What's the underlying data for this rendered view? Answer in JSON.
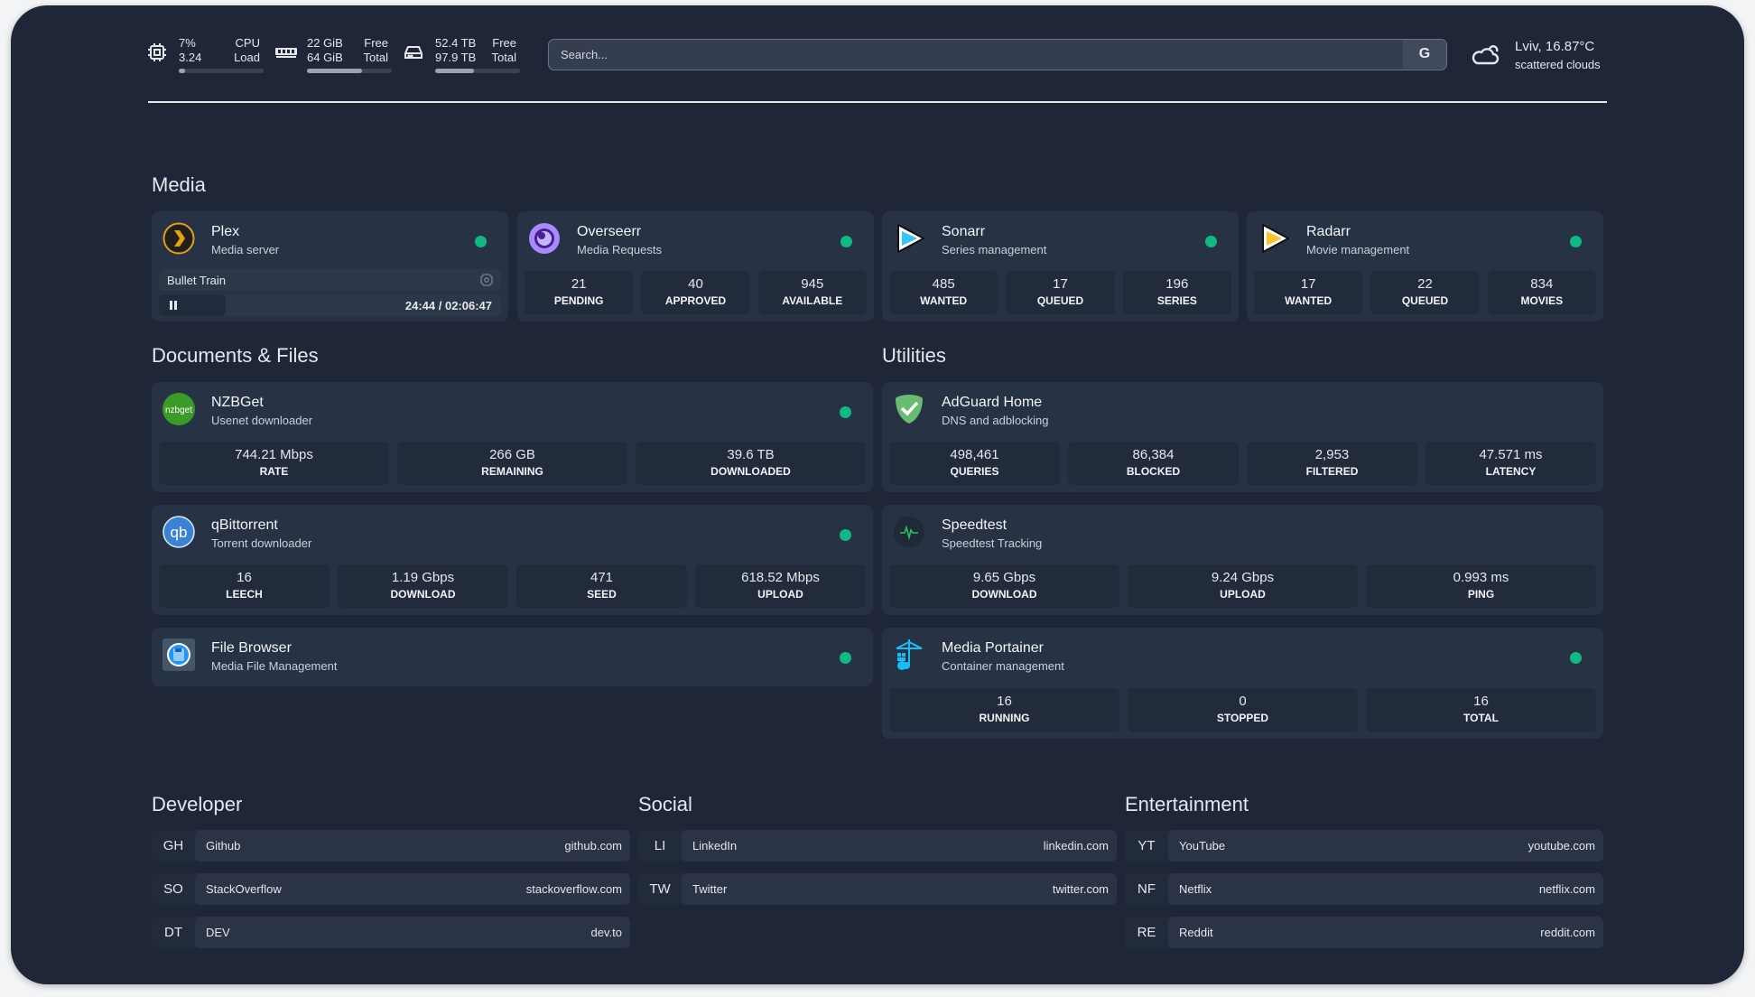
{
  "header": {
    "cpu": {
      "icon": "cpu-icon",
      "value1": "7%",
      "value2": "3.24",
      "label1": "CPU",
      "label2": "Load",
      "percent": 7
    },
    "memory": {
      "icon": "memory-icon",
      "value1": "22 GiB",
      "value2": "64 GiB",
      "label1": "Free",
      "label2": "Total",
      "percent": 65
    },
    "disk": {
      "icon": "hard-drive-icon",
      "value1": "52.4 TB",
      "value2": "97.9 TB",
      "label1": "Free",
      "label2": "Total",
      "percent": 46
    },
    "search": {
      "placeholder": "Search...",
      "button": "G"
    },
    "weather": {
      "icon": "cloud-icon",
      "location": "Lviv, 16.87°C",
      "description": "scattered clouds"
    }
  },
  "colors": {
    "background": "#1e2638",
    "card": "#283245",
    "status_online": "#10b981"
  },
  "sections": {
    "media": "Media",
    "documents": "Documents & Files",
    "utilities": "Utilities",
    "developer": "Developer",
    "social": "Social",
    "entertainment": "Entertainment"
  },
  "media": [
    {
      "name": "Plex",
      "desc": "Media server",
      "icon": "plex-icon",
      "status": "online",
      "now_playing": {
        "title": "Bullet Train",
        "time": "24:44 / 02:06:47",
        "progress_percent": 19.5
      }
    },
    {
      "name": "Overseerr",
      "desc": "Media Requests",
      "icon": "overseerr-icon",
      "status": "online",
      "stats": [
        {
          "v": "21",
          "l": "PENDING"
        },
        {
          "v": "40",
          "l": "APPROVED"
        },
        {
          "v": "945",
          "l": "AVAILABLE"
        }
      ]
    },
    {
      "name": "Sonarr",
      "desc": "Series management",
      "icon": "sonarr-icon",
      "status": "online",
      "stats": [
        {
          "v": "485",
          "l": "WANTED"
        },
        {
          "v": "17",
          "l": "QUEUED"
        },
        {
          "v": "196",
          "l": "SERIES"
        }
      ]
    },
    {
      "name": "Radarr",
      "desc": "Movie management",
      "icon": "radarr-icon",
      "status": "online",
      "stats": [
        {
          "v": "17",
          "l": "WANTED"
        },
        {
          "v": "22",
          "l": "QUEUED"
        },
        {
          "v": "834",
          "l": "MOVIES"
        }
      ]
    }
  ],
  "documents": [
    {
      "name": "NZBGet",
      "desc": "Usenet downloader",
      "icon": "nzbget-icon",
      "status": "online",
      "stats": [
        {
          "v": "744.21 Mbps",
          "l": "RATE"
        },
        {
          "v": "266 GB",
          "l": "REMAINING"
        },
        {
          "v": "39.6 TB",
          "l": "DOWNLOADED"
        }
      ]
    },
    {
      "name": "qBittorrent",
      "desc": "Torrent downloader",
      "icon": "qbittorrent-icon",
      "status": "online",
      "stats": [
        {
          "v": "16",
          "l": "LEECH"
        },
        {
          "v": "1.19 Gbps",
          "l": "DOWNLOAD"
        },
        {
          "v": "471",
          "l": "SEED"
        },
        {
          "v": "618.52 Mbps",
          "l": "UPLOAD"
        }
      ]
    },
    {
      "name": "File Browser",
      "desc": "Media File Management",
      "icon": "file-browser-icon",
      "status": "online"
    }
  ],
  "utilities": [
    {
      "name": "AdGuard Home",
      "desc": "DNS and adblocking",
      "icon": "adguard-icon",
      "stats": [
        {
          "v": "498,461",
          "l": "QUERIES"
        },
        {
          "v": "86,384",
          "l": "BLOCKED"
        },
        {
          "v": "2,953",
          "l": "FILTERED"
        },
        {
          "v": "47.571 ms",
          "l": "LATENCY"
        }
      ]
    },
    {
      "name": "Speedtest",
      "desc": "Speedtest Tracking",
      "icon": "speedtest-icon",
      "stats": [
        {
          "v": "9.65 Gbps",
          "l": "DOWNLOAD"
        },
        {
          "v": "9.24 Gbps",
          "l": "UPLOAD"
        },
        {
          "v": "0.993 ms",
          "l": "PING"
        }
      ]
    },
    {
      "name": "Media Portainer",
      "desc": "Container management",
      "icon": "portainer-icon",
      "status": "online",
      "stats": [
        {
          "v": "16",
          "l": "RUNNING"
        },
        {
          "v": "0",
          "l": "STOPPED"
        },
        {
          "v": "16",
          "l": "TOTAL"
        }
      ]
    }
  ],
  "bookmarks": {
    "developer": [
      {
        "abbr": "GH",
        "name": "Github",
        "url": "github.com"
      },
      {
        "abbr": "SO",
        "name": "StackOverflow",
        "url": "stackoverflow.com"
      },
      {
        "abbr": "DT",
        "name": "DEV",
        "url": "dev.to"
      }
    ],
    "social": [
      {
        "abbr": "LI",
        "name": "LinkedIn",
        "url": "linkedin.com"
      },
      {
        "abbr": "TW",
        "name": "Twitter",
        "url": "twitter.com"
      }
    ],
    "entertainment": [
      {
        "abbr": "YT",
        "name": "YouTube",
        "url": "youtube.com"
      },
      {
        "abbr": "NF",
        "name": "Netflix",
        "url": "netflix.com"
      },
      {
        "abbr": "RE",
        "name": "Reddit",
        "url": "reddit.com"
      }
    ]
  }
}
